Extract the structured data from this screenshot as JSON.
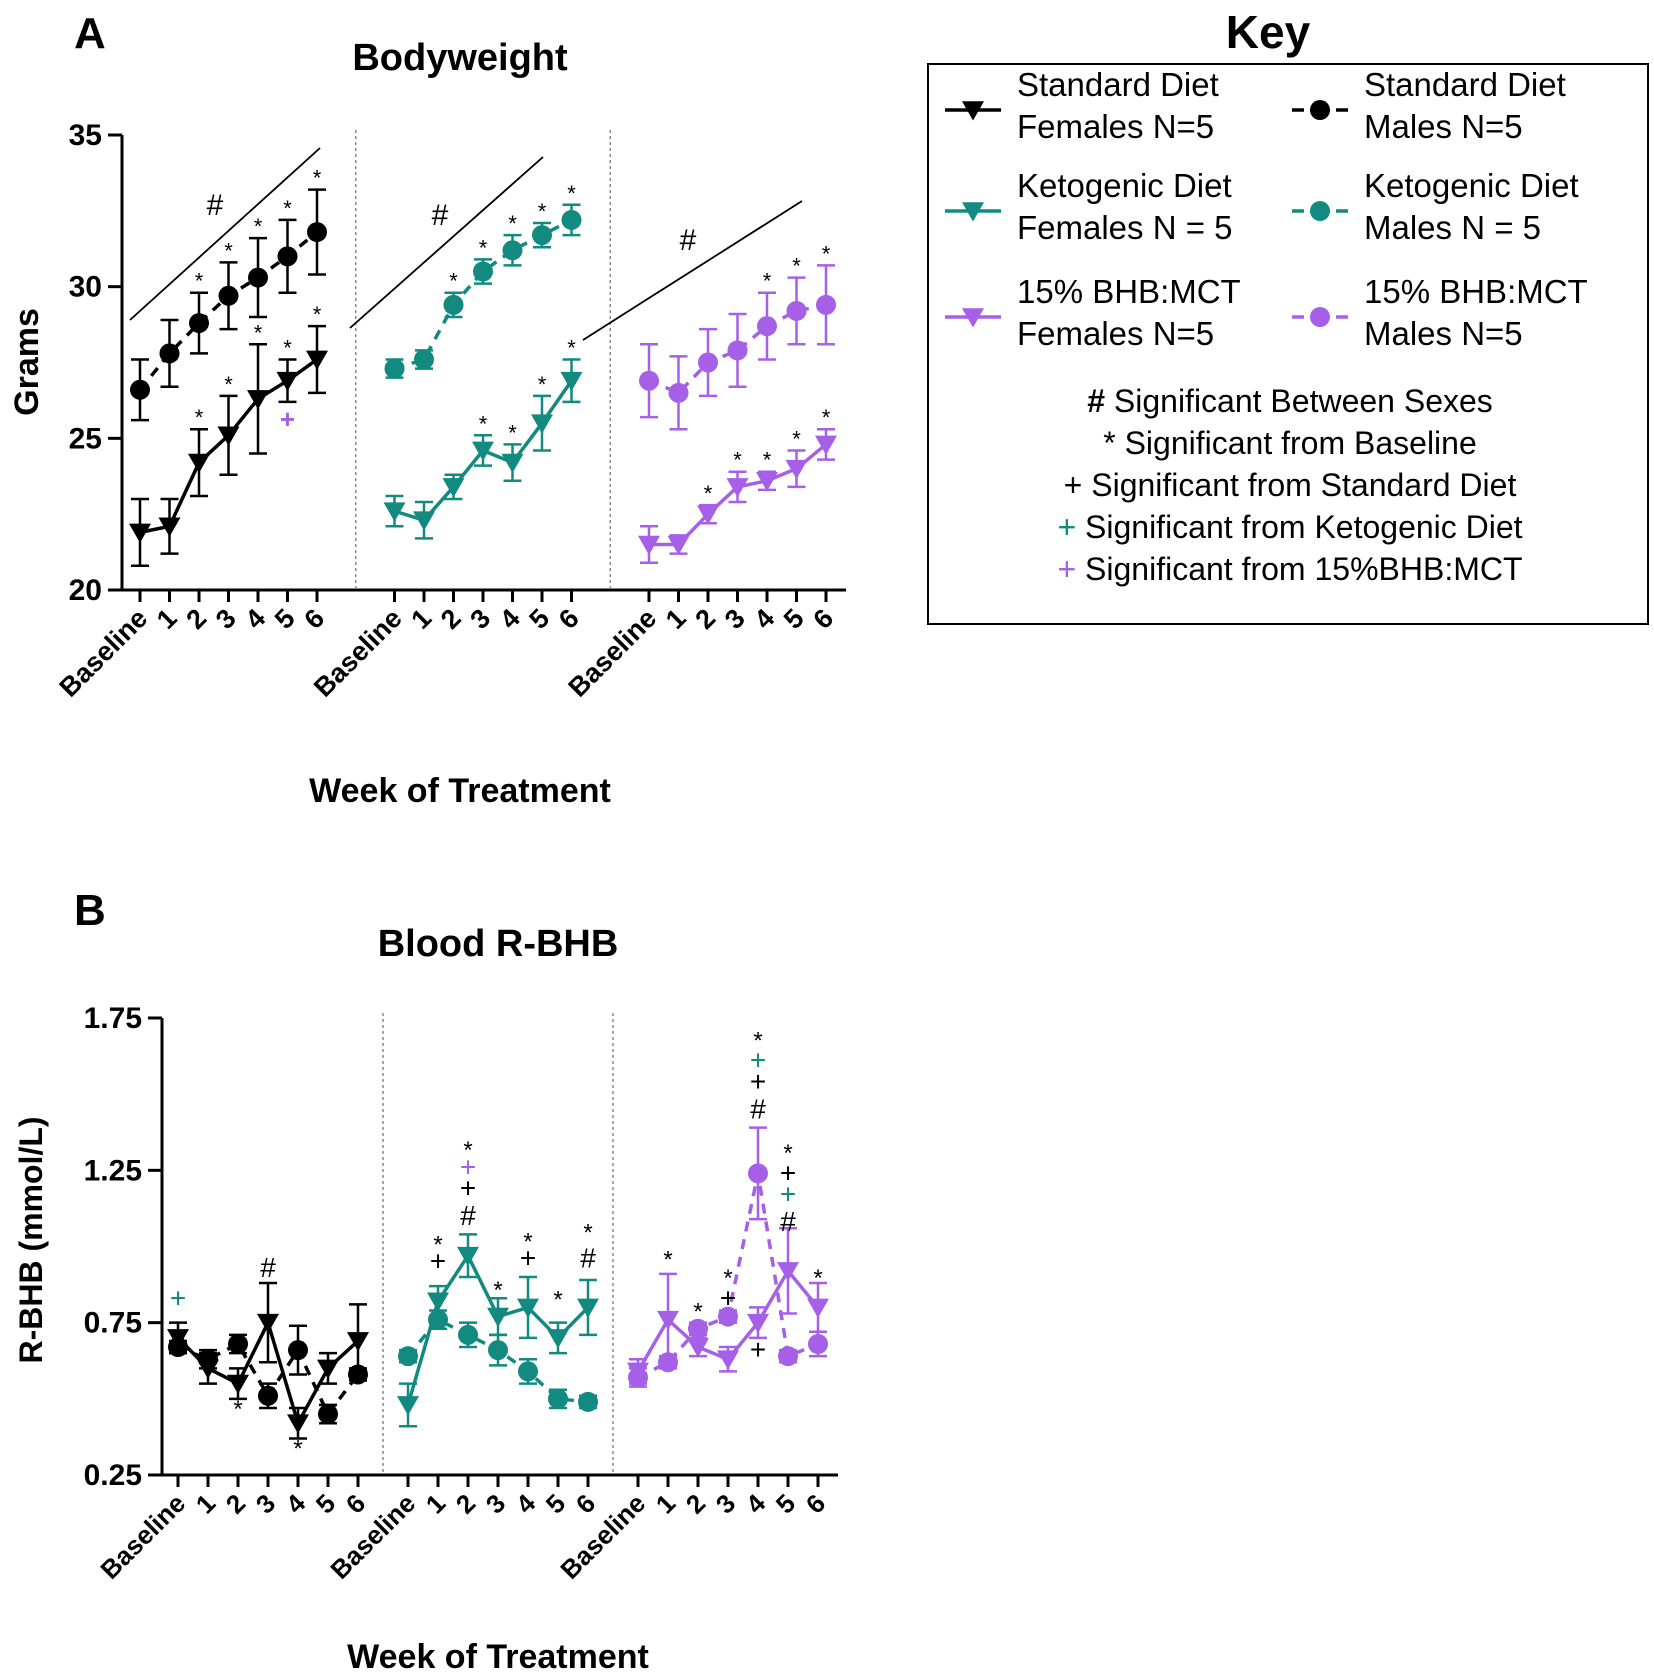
{
  "panels": {
    "a": {
      "label": "A",
      "title": "Bodyweight",
      "xlabel": "Week of Treatment",
      "ylabel": "Grams"
    },
    "b": {
      "label": "B",
      "title": "Blood R-BHB",
      "xlabel": "Week of Treatment",
      "ylabel": "R-BHB (mmol/L)"
    }
  },
  "legend": {
    "title": "Key",
    "items": [
      {
        "line1": "Standard Diet",
        "line2": "Females N=5",
        "color": "#000000",
        "marker": "triangle-down",
        "dash": "solid"
      },
      {
        "line1": "Standard Diet",
        "line2": "Males N=5",
        "color": "#000000",
        "marker": "circle",
        "dash": "dashed"
      },
      {
        "line1": "Ketogenic Diet",
        "line2": "Females N = 5",
        "color": "#128a80",
        "marker": "triangle-down",
        "dash": "solid"
      },
      {
        "line1": "Ketogenic Diet",
        "line2": "Males N = 5",
        "color": "#128a80",
        "marker": "circle",
        "dash": "dashed"
      },
      {
        "line1": "15% BHB:MCT",
        "line2": "Females N=5",
        "color": "#a660e8",
        "marker": "triangle-down",
        "dash": "solid"
      },
      {
        "line1": "15% BHB:MCT",
        "line2": "Males N=5",
        "color": "#a660e8",
        "marker": "circle",
        "dash": "dashed"
      }
    ],
    "notes": [
      {
        "symbol": "#",
        "text": "Significant Between Sexes",
        "color": "#000000"
      },
      {
        "symbol": "*",
        "text": "Significant from Baseline",
        "color": "#000000"
      },
      {
        "symbol": "+",
        "text": "Significant from Standard Diet",
        "color": "#000000"
      },
      {
        "symbol": "+",
        "text": "Significant from Ketogenic Diet",
        "color": "#128a80"
      },
      {
        "symbol": "+",
        "text": "Significant from 15%BHB:MCT",
        "color": "#a660e8"
      }
    ]
  },
  "colors": {
    "standard": "#000000",
    "ketogenic": "#128a80",
    "bhb": "#a660e8"
  },
  "chart_data": [
    {
      "id": "A",
      "type": "line",
      "title": "Bodyweight",
      "xlabel": "Week of Treatment",
      "ylabel": "Grams",
      "ylim": [
        20,
        35
      ],
      "yticks": [
        20,
        25,
        30,
        35
      ],
      "categories": [
        "Baseline",
        "1",
        "2",
        "3",
        "4",
        "5",
        "6"
      ],
      "groups": [
        {
          "name": "Standard Diet",
          "color": "#000000",
          "females": {
            "values": [
              21.9,
              22.1,
              24.2,
              25.1,
              26.3,
              26.9,
              27.6
            ],
            "err": [
              1.1,
              0.9,
              1.1,
              1.3,
              1.8,
              0.7,
              1.1
            ]
          },
          "males": {
            "values": [
              26.6,
              27.8,
              28.8,
              29.7,
              30.3,
              31.0,
              31.8
            ],
            "err": [
              1.0,
              1.1,
              1.0,
              1.1,
              1.3,
              1.2,
              1.4
            ]
          },
          "stars_f": [
            2,
            3,
            4,
            5,
            6
          ],
          "stars_m": [
            2,
            3,
            4,
            5,
            6
          ],
          "extra": [
            {
              "i": 5,
              "value": 25.6,
              "symbol": "+",
              "color": "#a660e8"
            }
          ],
          "hash": true
        },
        {
          "name": "Ketogenic Diet",
          "color": "#128a80",
          "females": {
            "values": [
              22.6,
              22.3,
              23.4,
              24.6,
              24.2,
              25.5,
              26.9
            ],
            "err": [
              0.5,
              0.6,
              0.4,
              0.5,
              0.6,
              0.9,
              0.7
            ]
          },
          "males": {
            "values": [
              27.3,
              27.6,
              29.4,
              30.5,
              31.2,
              31.7,
              32.2
            ],
            "err": [
              0.3,
              0.3,
              0.4,
              0.4,
              0.5,
              0.4,
              0.5
            ]
          },
          "stars_f": [
            3,
            4,
            5,
            6
          ],
          "stars_m": [
            2,
            3,
            4,
            5,
            6
          ],
          "extra": [],
          "hash": true
        },
        {
          "name": "15% BHB:MCT",
          "color": "#a660e8",
          "females": {
            "values": [
              21.5,
              21.5,
              22.5,
              23.4,
              23.6,
              24.0,
              24.8
            ],
            "err": [
              0.6,
              0.3,
              0.3,
              0.5,
              0.3,
              0.6,
              0.5
            ]
          },
          "males": {
            "values": [
              26.9,
              26.5,
              27.5,
              27.9,
              28.7,
              29.2,
              29.4
            ],
            "err": [
              1.2,
              1.2,
              1.1,
              1.2,
              1.1,
              1.1,
              1.3
            ]
          },
          "stars_f": [
            2,
            3,
            4,
            5,
            6
          ],
          "stars_m": [
            4,
            5,
            6
          ],
          "extra": [],
          "hash": true
        }
      ]
    },
    {
      "id": "B",
      "type": "line",
      "title": "Blood R-BHB",
      "xlabel": "Week of Treatment",
      "ylabel": "R-BHB (mmol/L)",
      "ylim": [
        0.25,
        1.75
      ],
      "yticks": [
        0.25,
        0.75,
        1.25,
        1.75
      ],
      "categories": [
        "Baseline",
        "1",
        "2",
        "3",
        "4",
        "5",
        "6"
      ],
      "groups": [
        {
          "name": "Standard Diet",
          "color": "#000000",
          "females": {
            "values": [
              0.7,
              0.6,
              0.55,
              0.75,
              0.42,
              0.6,
              0.69
            ],
            "err": [
              0.05,
              0.05,
              0.05,
              0.13,
              0.05,
              0.05,
              0.12
            ]
          },
          "males": {
            "values": [
              0.67,
              0.63,
              0.68,
              0.51,
              0.66,
              0.45,
              0.58
            ],
            "err": [
              0.02,
              0.03,
              0.03,
              0.04,
              0.08,
              0.03,
              0.02
            ]
          },
          "annotations": [
            {
              "i": 0,
              "value": 0.83,
              "symbol": "+",
              "color": "#128a80"
            },
            {
              "i": 2,
              "value": 0.47,
              "symbol": "*",
              "color": "#000000"
            },
            {
              "i": 3,
              "value": 0.93,
              "symbol": "#",
              "color": "#000000"
            },
            {
              "i": 4,
              "value": 0.34,
              "symbol": "*",
              "color": "#000000"
            }
          ]
        },
        {
          "name": "Ketogenic Diet",
          "color": "#128a80",
          "females": {
            "values": [
              0.48,
              0.82,
              0.97,
              0.77,
              0.8,
              0.7,
              0.8
            ],
            "err": [
              0.07,
              0.05,
              0.07,
              0.06,
              0.1,
              0.05,
              0.09
            ]
          },
          "males": {
            "values": [
              0.64,
              0.76,
              0.71,
              0.66,
              0.59,
              0.5,
              0.49
            ],
            "err": [
              0.02,
              0.03,
              0.04,
              0.05,
              0.04,
              0.03,
              0.02
            ]
          },
          "annotations": [
            {
              "i": 1,
              "value": 0.95,
              "symbol": "+",
              "color": "#000000"
            },
            {
              "i": 1,
              "value": 1.01,
              "symbol": "*",
              "color": "#000000"
            },
            {
              "i": 2,
              "value": 1.1,
              "symbol": "#",
              "color": "#000000"
            },
            {
              "i": 2,
              "value": 1.19,
              "symbol": "+",
              "color": "#000000"
            },
            {
              "i": 2,
              "value": 1.26,
              "symbol": "+",
              "color": "#a660e8"
            },
            {
              "i": 2,
              "value": 1.32,
              "symbol": "*",
              "color": "#000000"
            },
            {
              "i": 3,
              "value": 0.86,
              "symbol": "*",
              "color": "#000000"
            },
            {
              "i": 4,
              "value": 0.96,
              "symbol": "+",
              "color": "#000000"
            },
            {
              "i": 4,
              "value": 1.02,
              "symbol": "*",
              "color": "#000000"
            },
            {
              "i": 5,
              "value": 0.83,
              "symbol": "*",
              "color": "#000000"
            },
            {
              "i": 6,
              "value": 0.96,
              "symbol": "#",
              "color": "#000000"
            },
            {
              "i": 6,
              "value": 1.05,
              "symbol": "*",
              "color": "#000000"
            }
          ]
        },
        {
          "name": "15% BHB:MCT",
          "color": "#a660e8",
          "females": {
            "values": [
              0.59,
              0.76,
              0.67,
              0.63,
              0.75,
              0.92,
              0.8
            ],
            "err": [
              0.04,
              0.15,
              0.03,
              0.04,
              0.05,
              0.14,
              0.08
            ]
          },
          "males": {
            "values": [
              0.57,
              0.62,
              0.73,
              0.77,
              1.24,
              0.64,
              0.68
            ],
            "err": [
              0.03,
              0.02,
              0.02,
              0.02,
              0.15,
              0.02,
              0.04
            ]
          },
          "annotations": [
            {
              "i": 1,
              "value": 0.96,
              "symbol": "*",
              "color": "#000000"
            },
            {
              "i": 2,
              "value": 0.79,
              "symbol": "*",
              "color": "#000000"
            },
            {
              "i": 3,
              "value": 0.83,
              "symbol": "+",
              "color": "#000000"
            },
            {
              "i": 3,
              "value": 0.9,
              "symbol": "*",
              "color": "#000000"
            },
            {
              "i": 4,
              "value": 0.66,
              "symbol": "+",
              "color": "#000000"
            },
            {
              "i": 4,
              "value": 1.45,
              "symbol": "#",
              "color": "#000000"
            },
            {
              "i": 4,
              "value": 1.54,
              "symbol": "+",
              "color": "#000000"
            },
            {
              "i": 4,
              "value": 1.61,
              "symbol": "+",
              "color": "#128a80"
            },
            {
              "i": 4,
              "value": 1.68,
              "symbol": "*",
              "color": "#000000"
            },
            {
              "i": 5,
              "value": 1.08,
              "symbol": "#",
              "color": "#000000"
            },
            {
              "i": 5,
              "value": 1.17,
              "symbol": "+",
              "color": "#128a80"
            },
            {
              "i": 5,
              "value": 1.24,
              "symbol": "+",
              "color": "#000000"
            },
            {
              "i": 5,
              "value": 1.31,
              "symbol": "*",
              "color": "#000000"
            },
            {
              "i": 6,
              "value": 0.9,
              "symbol": "*",
              "color": "#000000"
            }
          ]
        }
      ]
    }
  ]
}
